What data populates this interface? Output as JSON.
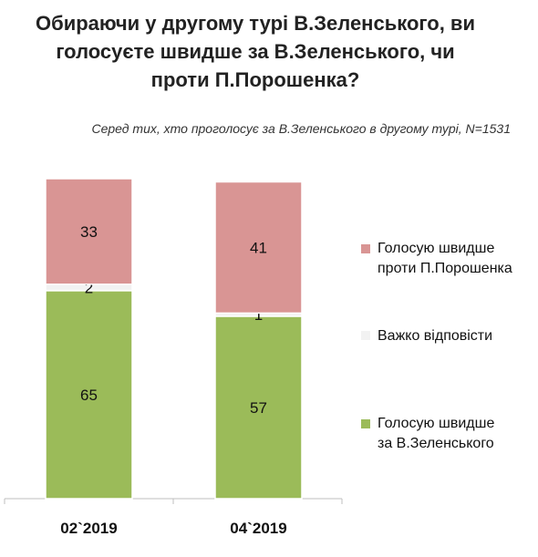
{
  "title_lines": [
    "Обираючи у другому турі В.Зеленського, ви",
    "голосуєте швидше за В.Зеленського, чи",
    "проти П.Порошенка?"
  ],
  "subtitle": "Серед тих, хто проголосує за В.Зеленського в другому турі, N=1531",
  "colors": {
    "against": "#d99594",
    "hard": "#f2f2f2",
    "for": "#9bbb59"
  },
  "chart_data": {
    "type": "bar",
    "stacked": true,
    "categories": [
      "02`2019",
      "04`2019"
    ],
    "series": [
      {
        "name": "Голосую швидше за В.Зеленського",
        "key": "for",
        "values": [
          65,
          57
        ]
      },
      {
        "name": "Важко відповісти",
        "key": "hard",
        "values": [
          2,
          1
        ]
      },
      {
        "name": "Голосую швидше проти П.Порошенка",
        "key": "against",
        "values": [
          33,
          41
        ]
      }
    ],
    "ylim": [
      0,
      100
    ],
    "legend_position": "right"
  },
  "legend": [
    {
      "key": "against",
      "label_lines": [
        "Голосую швидше",
        "проти П.Порошенка"
      ]
    },
    {
      "key": "hard",
      "label_lines": [
        "Важко відповісти"
      ]
    },
    {
      "key": "for",
      "label_lines": [
        "Голосую швидше",
        "за В.Зеленського"
      ]
    }
  ]
}
